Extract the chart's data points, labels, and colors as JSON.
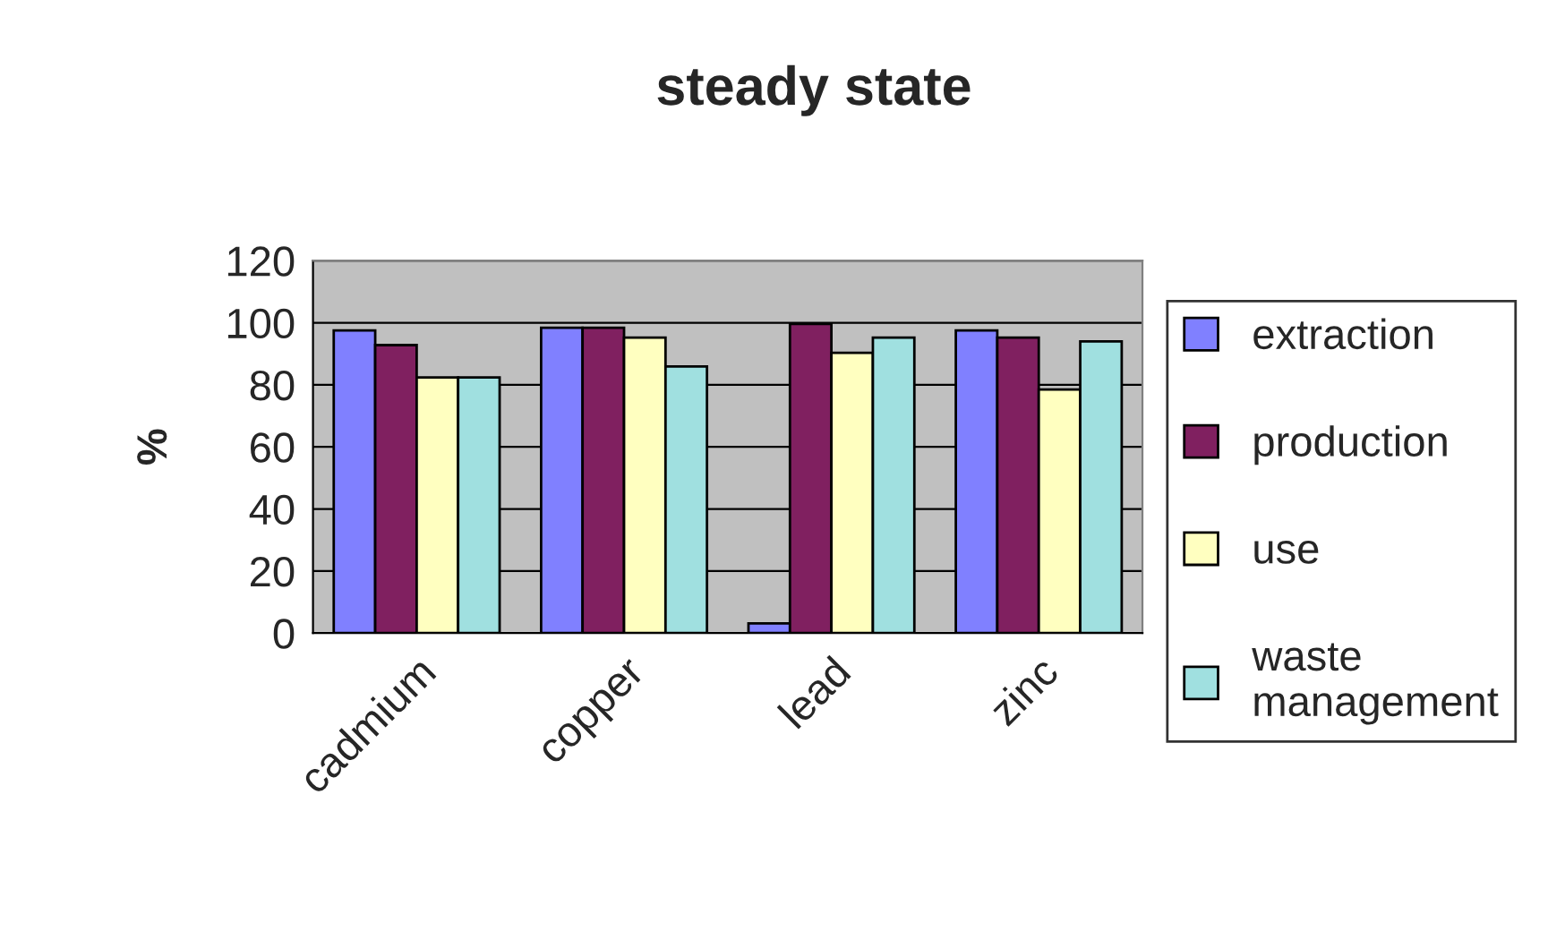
{
  "chart_data": {
    "type": "bar",
    "title": "steady state",
    "ylabel": "%",
    "categories": [
      "cadmium",
      "copper",
      "lead",
      "zinc"
    ],
    "series": [
      {
        "name": "extraction",
        "color": "#8080ff",
        "values": [
          97.5,
          98.4,
          3.1,
          97.5
        ]
      },
      {
        "name": "production",
        "color": "#802060",
        "values": [
          92.8,
          98.4,
          99.6,
          95.2
        ]
      },
      {
        "name": "use",
        "color": "#ffffc0",
        "values": [
          82.4,
          95.2,
          90.3,
          78.5
        ]
      },
      {
        "name": "waste\nmanagement",
        "color": "#a0e0e0",
        "values": [
          82.4,
          85.9,
          95.2,
          94.0
        ]
      }
    ],
    "ylim": [
      0,
      120
    ],
    "yticks": [
      0,
      20,
      40,
      60,
      80,
      100,
      120
    ],
    "grid": "y",
    "legend": "right"
  }
}
